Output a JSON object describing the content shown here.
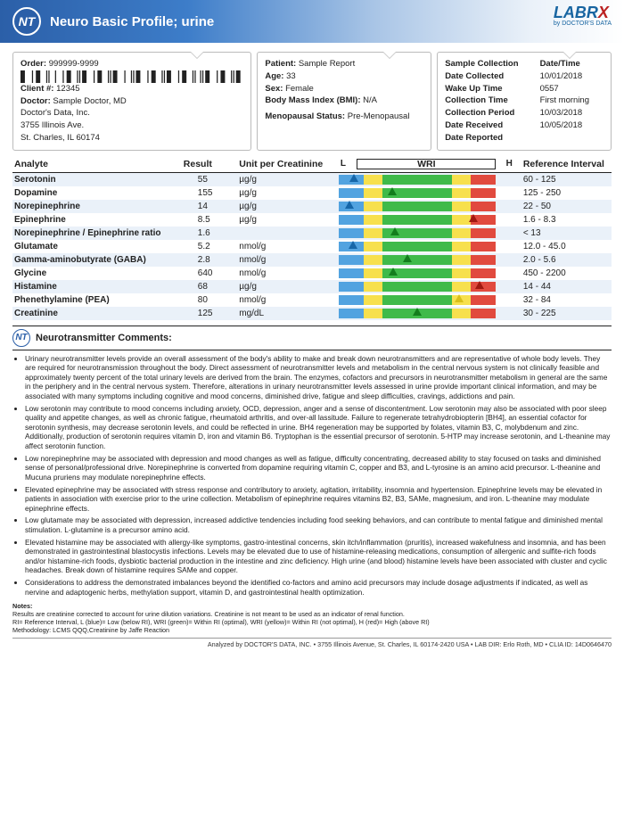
{
  "header": {
    "title": "Neuro Basic Profile; urine",
    "nt": "NT",
    "logo_main": "LABR",
    "logo_x": "X",
    "logo_sub": "by DOCTOR'S DATA"
  },
  "order": {
    "order_label": "Order:",
    "order_value": "999999-9999",
    "client_label": "Client #:",
    "client_value": "12345",
    "doctor_label": "Doctor:",
    "doctor_value": "Sample Doctor, MD",
    "addr1": "Doctor's Data, Inc.",
    "addr2": "3755 Illinois Ave.",
    "addr3": "St. Charles, IL 60174"
  },
  "patient": {
    "patient_label": "Patient:",
    "patient_value": "Sample Report",
    "age_label": "Age:",
    "age_value": "33",
    "sex_label": "Sex:",
    "sex_value": "Female",
    "bmi_label": "Body Mass Index (BMI):",
    "bmi_value": "N/A",
    "meno_label": "Menopausal Status:",
    "meno_value": "Pre-Menopausal"
  },
  "collection": {
    "header_left": "Sample Collection",
    "header_right": "Date/Time",
    "rows": [
      {
        "l": "Date Collected",
        "r": "10/01/2018"
      },
      {
        "l": "Wake Up Time",
        "r": "0557"
      },
      {
        "l": "Collection Time",
        "r": "First morning"
      },
      {
        "l": "Collection Period",
        "r": "10/03/2018"
      },
      {
        "l": "Date Received",
        "r": "10/05/2018"
      },
      {
        "l": "Date Reported",
        "r": ""
      }
    ]
  },
  "table": {
    "headers": {
      "analyte": "Analyte",
      "result": "Result",
      "unit": "Unit per Creatinine",
      "L": "L",
      "WRI": "WRI",
      "H": "H",
      "ref": "Reference Interval"
    },
    "rows": [
      {
        "analyte": "Serotonin",
        "result": "55",
        "unit": "µg/g",
        "ref": "60 - 125",
        "pos": 10,
        "mclass": "blue"
      },
      {
        "analyte": "Dopamine",
        "result": "155",
        "unit": "µg/g",
        "ref": "125 - 250",
        "pos": 34,
        "mclass": "green"
      },
      {
        "analyte": "Norepinephrine",
        "result": "14",
        "unit": "µg/g",
        "ref": "22 - 50",
        "pos": 7,
        "mclass": "blue"
      },
      {
        "analyte": "Epinephrine",
        "result": "8.5",
        "unit": "µg/g",
        "ref": "1.6 - 8.3",
        "pos": 86,
        "mclass": "red"
      },
      {
        "analyte": "Norepinephrine / Epinephrine ratio",
        "result": "1.6",
        "unit": "",
        "ref": "< 13",
        "pos": 36,
        "mclass": "green"
      },
      {
        "analyte": "Glutamate",
        "result": "5.2",
        "unit": "nmol/g",
        "ref": "12.0 - 45.0",
        "pos": 9,
        "mclass": "blue"
      },
      {
        "analyte": "Gamma-aminobutyrate (GABA)",
        "result": "2.8",
        "unit": "nmol/g",
        "ref": "2.0 - 5.6",
        "pos": 44,
        "mclass": "green"
      },
      {
        "analyte": "Glycine",
        "result": "640",
        "unit": "nmol/g",
        "ref": "450 - 2200",
        "pos": 35,
        "mclass": "green"
      },
      {
        "analyte": "Histamine",
        "result": "68",
        "unit": "µg/g",
        "ref": "14 - 44",
        "pos": 90,
        "mclass": "red"
      },
      {
        "analyte": "Phenethylamine (PEA)",
        "result": "80",
        "unit": "nmol/g",
        "ref": "32 - 84",
        "pos": 77,
        "mclass": "yellow"
      },
      {
        "analyte": "Creatinine",
        "result": "125",
        "unit": "mg/dL",
        "ref": "30 - 225",
        "pos": 50,
        "mclass": "green"
      }
    ]
  },
  "comments": {
    "title": "Neurotransmitter Comments:",
    "items": [
      "Urinary neurotransmitter levels provide an overall assessment of the body's ability to make and break down neurotransmitters and are representative of whole body levels. They are required for neurotransmission throughout the body. Direct assessment of neurotransmitter levels and metabolism in the central nervous system is not clinically feasible and approximately twenty percent of the total urinary levels are derived from the brain. The enzymes, cofactors and precursors in neurotransmitter metabolism in general are the same in the periphery and in the central nervous system. Therefore, alterations in urinary neurotransmitter levels assessed in urine provide important clinical information, and may be associated with many symptoms including cognitive and mood concerns, diminished drive, fatigue and sleep difficulties, cravings, addictions and pain.",
      "Low serotonin may contribute to mood concerns including anxiety, OCD, depression, anger and a sense of discontentment. Low serotonin may also be associated with poor sleep quality and appetite changes, as well as chronic fatigue, rheumatoid arthritis, and over-all lassitude. Failure to regenerate tetrahydrobiopterin [BH4], an essential cofactor for serotonin synthesis, may decrease serotonin levels, and could be reflected in urine. BH4 regeneration may be supported by folates, vitamin B3, C, molybdenum and zinc. Additionally, production of serotonin requires vitamin D, iron and vitamin B6. Tryptophan is the essential precursor of serotonin. 5-HTP may increase serotonin, and L-theanine may affect serotonin function.",
      "Low norepinephrine may be associated with depression and mood changes as well as fatigue, difficulty concentrating, decreased ability to stay focused on tasks and diminished sense of personal/professional drive. Norepinephrine is converted from dopamine requiring vitamin C, copper and B3, and L-tyrosine is an amino acid precursor. L-theanine and Mucuna pruriens may modulate norepinephrine effects.",
      "Elevated epinephrine may be associated with stress response and contributory to anxiety, agitation, irritability, insomnia and hypertension. Epinephrine levels may be elevated in patients in association with exercise prior to the urine collection. Metabolism of epinephrine requires vitamins B2, B3, SAMe, magnesium, and iron. L-theanine may modulate epinephrine effects.",
      "Low glutamate may be associated with depression, increased addictive tendencies including food seeking behaviors, and can contribute to mental fatigue and diminished mental stimulation. L-glutamine is a precursor amino acid.",
      "Elevated histamine may be associated with allergy-like symptoms, gastro-intestinal concerns, skin itch/inflammation (pruritis), increased wakefulness and insomnia, and has been demonstrated in gastrointestinal blastocystis infections. Levels may be elevated due to use of histamine-releasing medications, consumption of allergenic and sulfite-rich foods and/or histamine-rich foods, dysbiotic bacterial production in the intestine and zinc deficiency. High urine (and blood) histamine levels have been associated with cluster and cyclic headaches. Break down of histamine requires SAMe and copper.",
      "Considerations to address the demonstrated imbalances beyond the identified co-factors and amino acid precursors may include dosage adjustments if indicated, as well as nervine and adaptogenic herbs, methylation support, vitamin D, and gastrointestinal health optimization."
    ]
  },
  "notes": {
    "title": "Notes:",
    "l1": "Results are creatinine corrected to account for urine dilution variations. Creatinine is not meant to be used as an indicator of renal function.",
    "l2": "RI= Reference Interval, L (blue)= Low (below RI), WRI (green)= Within RI (optimal), WRI (yellow)= Within RI (not optimal), H (red)= High (above RI)",
    "l3": "Methodology: LCMS QQQ,Creatinine by Jaffe Reaction"
  },
  "footer": "Analyzed by DOCTOR'S DATA, INC. • 3755 Illinois Avenue, St. Charles, IL 60174-2420 USA • LAB DIR: Erlo Roth, MD • CLIA ID: 14D0646470"
}
